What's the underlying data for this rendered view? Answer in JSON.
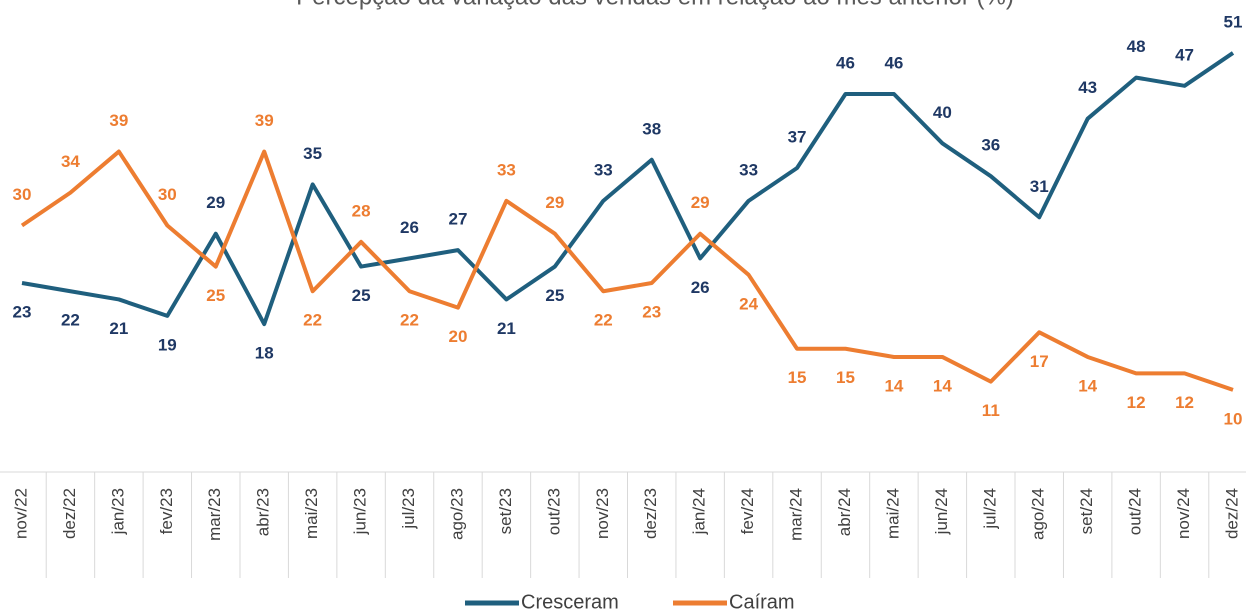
{
  "chart_data": {
    "type": "line",
    "title": "Percepção da variação das vendas em relação ao mês anterior (%)",
    "categories": [
      "nov/22",
      "dez/22",
      "jan/23",
      "fev/23",
      "mar/23",
      "abr/23",
      "mai/23",
      "jun/23",
      "jul/23",
      "ago/23",
      "set/23",
      "out/23",
      "nov/23",
      "dez/23",
      "jan/24",
      "fev/24",
      "mar/24",
      "abr/24",
      "mai/24",
      "jun/24",
      "jul/24",
      "ago/24",
      "set/24",
      "out/24",
      "nov/24",
      "dez/24"
    ],
    "series": [
      {
        "name": "Cresceram",
        "color": "#1f5f7e",
        "label_color": "#1f3864",
        "values": [
          23,
          22,
          21,
          19,
          29,
          18,
          35,
          25,
          26,
          27,
          21,
          25,
          33,
          38,
          26,
          33,
          37,
          46,
          46,
          40,
          36,
          31,
          43,
          48,
          47,
          51
        ]
      },
      {
        "name": "Caíram",
        "color": "#ed7d31",
        "label_color": "#ed7d31",
        "values": [
          30,
          34,
          39,
          30,
          25,
          39,
          22,
          28,
          22,
          20,
          33,
          29,
          22,
          23,
          29,
          24,
          15,
          15,
          14,
          14,
          11,
          17,
          14,
          12,
          12,
          10
        ]
      }
    ],
    "ylim": [
      0,
      60
    ]
  }
}
